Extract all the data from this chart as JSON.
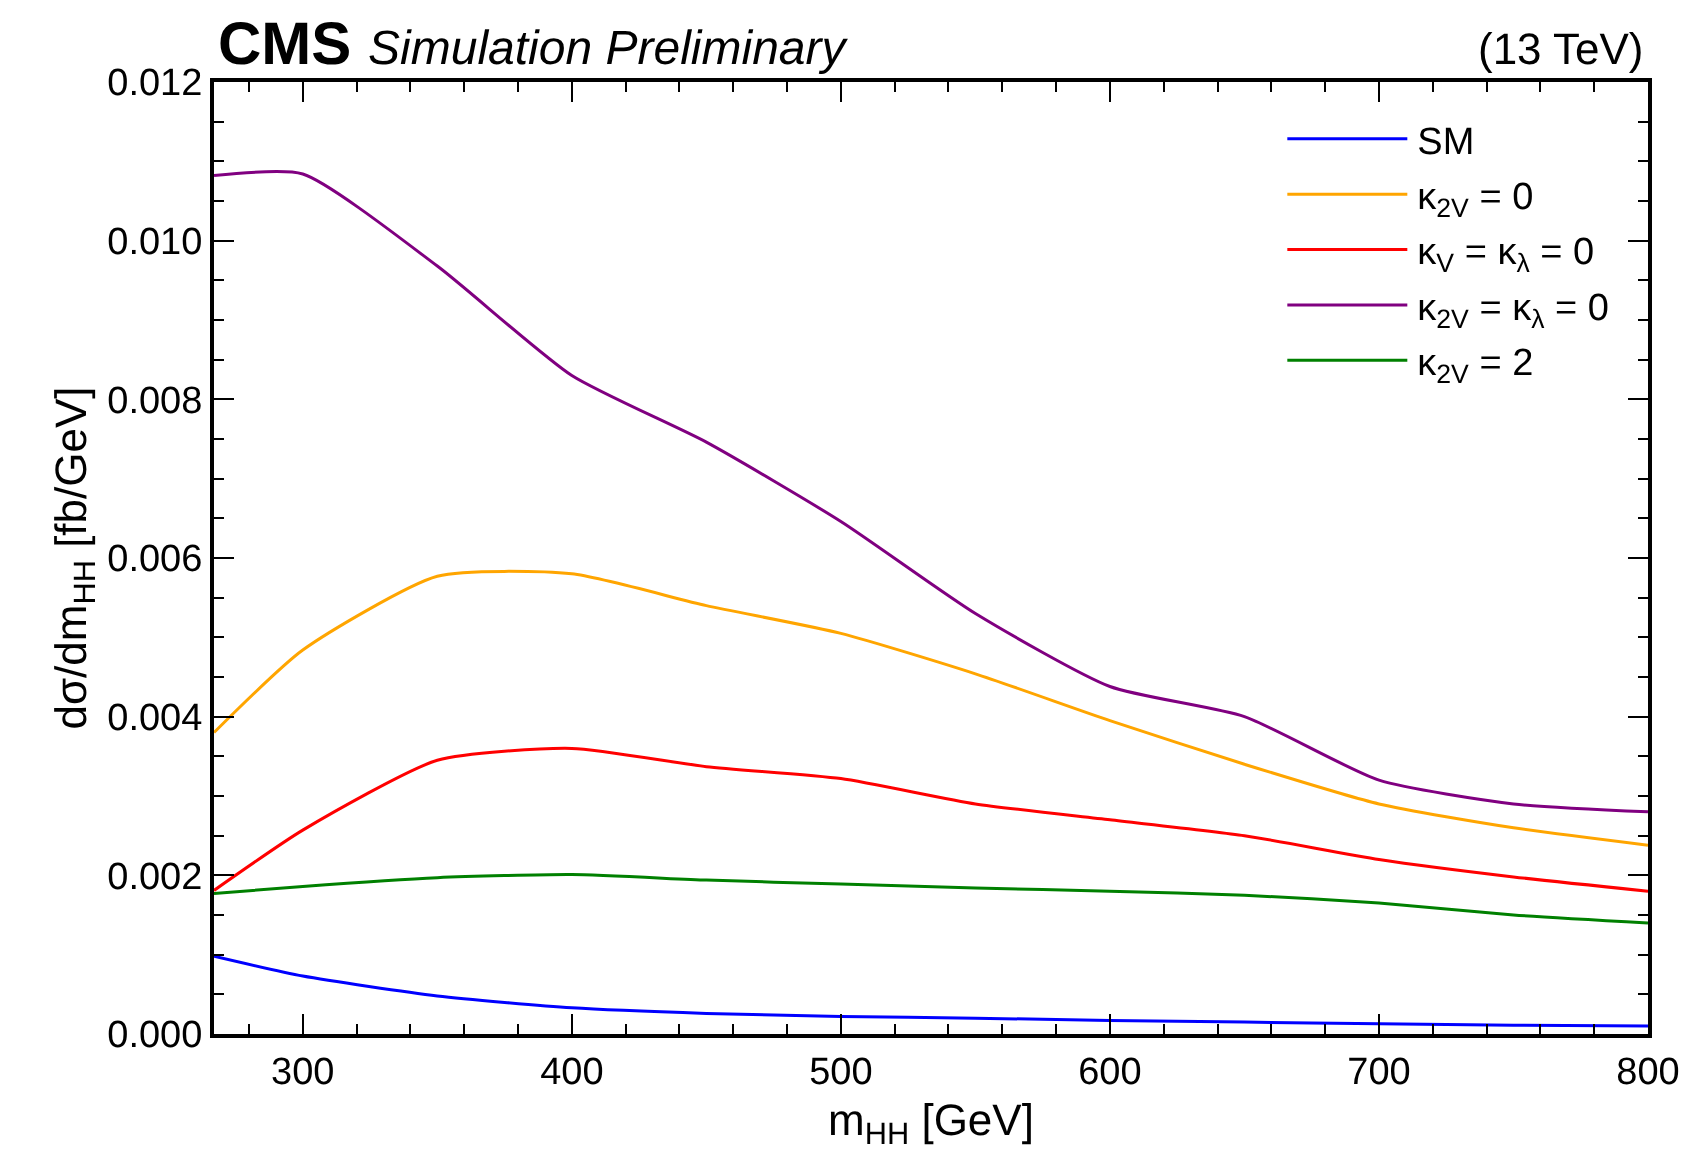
{
  "chart_data": {
    "type": "line",
    "title": "CMS",
    "subtitle": "Simulation Preliminary",
    "annotations": [
      "(13 TeV)"
    ],
    "xlabel": "m$_{HH}$ [GeV]",
    "ylabel": "dσ/dm$_{HH}$ [fb/GeV]",
    "x": [
      267,
      300,
      350,
      400,
      450,
      500,
      550,
      600,
      650,
      700,
      750,
      800
    ],
    "series": [
      {
        "name": "SM",
        "color": "#0000ff",
        "values": [
          0.00098,
          0.00073,
          0.00048,
          0.00033,
          0.00026,
          0.00022,
          0.0002,
          0.00017,
          0.00015,
          0.00013,
          0.00011,
          0.0001
        ]
      },
      {
        "name": "κ$_{2V}$ = 0",
        "color": "#ffa500",
        "values": [
          0.0038,
          0.00484,
          0.00577,
          0.0058,
          0.0054,
          0.00505,
          0.00454,
          0.00395,
          0.0034,
          0.0029,
          0.0026,
          0.00238
        ]
      },
      {
        "name": "κ$_{V}$ = κ$_{λ}$ = 0",
        "color": "#ff0000",
        "values": [
          0.00181,
          0.00257,
          0.00345,
          0.0036,
          0.00337,
          0.00322,
          0.0029,
          0.0027,
          0.0025,
          0.0022,
          0.00198,
          0.0018
        ]
      },
      {
        "name": "κ$_{2V}$ = κ$_{λ}$ = 0",
        "color": "#800080",
        "values": [
          0.01082,
          0.01084,
          0.00968,
          0.0083,
          0.00746,
          0.00646,
          0.0053,
          0.00438,
          0.004,
          0.0032,
          0.0029,
          0.0028
        ]
      },
      {
        "name": "κ$_{2V}$ = 2",
        "color": "#008000",
        "values": [
          0.00177,
          0.00186,
          0.00197,
          0.00201,
          0.00194,
          0.00189,
          0.00184,
          0.0018,
          0.00175,
          0.00165,
          0.0015,
          0.0014
        ]
      }
    ],
    "xlim": [
      267,
      800
    ],
    "xticks": [
      300,
      400,
      500,
      600,
      700,
      800
    ],
    "ylim": [
      0,
      0.012
    ],
    "yticks": [
      {
        "value": 0,
        "label": "0.000"
      },
      {
        "value": 0.002,
        "label": "0.002"
      },
      {
        "value": 0.004,
        "label": "0.004"
      },
      {
        "value": 0.006,
        "label": "0.006"
      },
      {
        "value": 0.008,
        "label": "0.008"
      },
      {
        "value": 0.01,
        "label": "0.010"
      },
      {
        "value": 0.012,
        "label": "0.012"
      }
    ],
    "legend": "top right",
    "grid": false,
    "marker": "none",
    "line_style": "solid"
  }
}
